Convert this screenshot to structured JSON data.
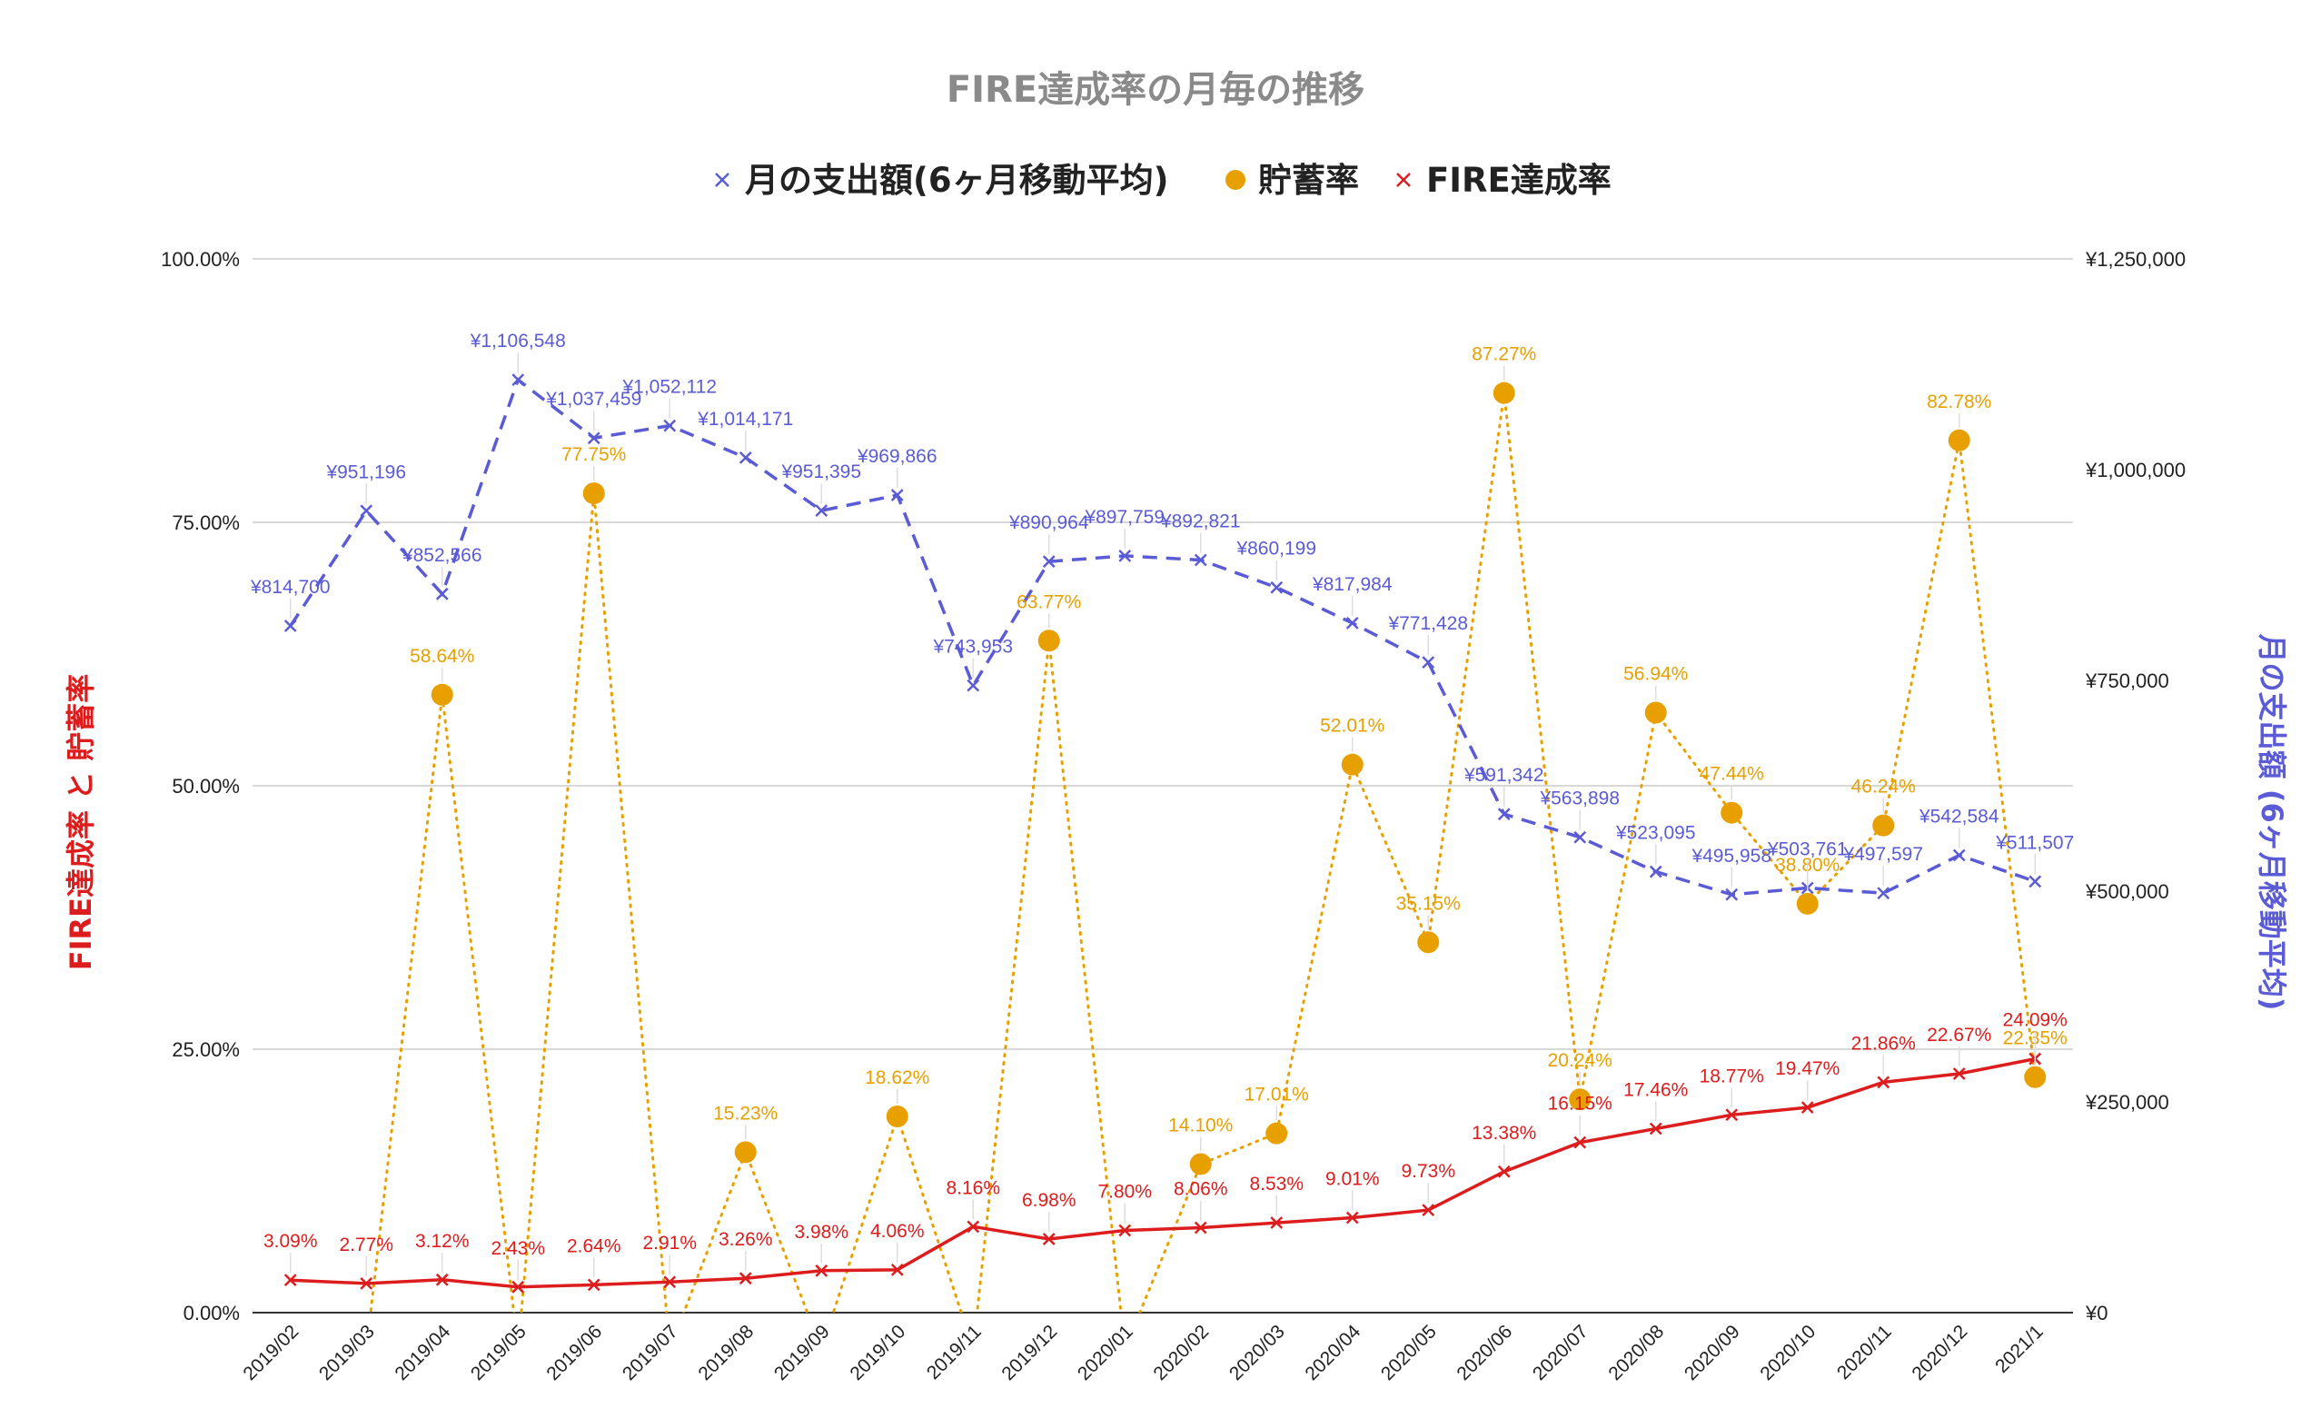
{
  "chart_data": {
    "type": "line",
    "title": "FIRE達成率の月毎の推移",
    "legend": [
      {
        "name": "月の支出額(6ヶ月移動平均)",
        "color": "#5b5bd6",
        "marker": "x"
      },
      {
        "name": "貯蓄率",
        "color": "#e8a000",
        "marker": "circle"
      },
      {
        "name": "FIRE達成率",
        "color": "#dd1d1d",
        "marker": "x"
      }
    ],
    "legend_position": "top",
    "grid": true,
    "ylabel_left": "FIRE達成率 と 貯蓄率",
    "ylabel_right": "月の支出額 (6ヶ月移動平均)",
    "yticks_left": [
      "0.00%",
      "25.00%",
      "50.00%",
      "75.00%",
      "100.00%"
    ],
    "yticks_right": [
      "¥0",
      "¥250,000",
      "¥500,000",
      "¥750,000",
      "¥1,000,000",
      "¥1,250,000"
    ],
    "ylim_left": [
      0,
      100
    ],
    "ylim_right": [
      0,
      1250000
    ],
    "categories": [
      "2019/02",
      "2019/03",
      "2019/04",
      "2019/05",
      "2019/06",
      "2019/07",
      "2019/08",
      "2019/09",
      "2019/10",
      "2019/11",
      "2019/12",
      "2020/01",
      "2020/02",
      "2020/03",
      "2020/04",
      "2020/05",
      "2020/06",
      "2020/07",
      "2020/08",
      "2020/09",
      "2020/10",
      "2020/11",
      "2020/12",
      "2021/1"
    ],
    "series": [
      {
        "name": "月の支出額(6ヶ月移動平均)",
        "axis": "right",
        "color": "#5b5bd6",
        "style": "dashed",
        "marker": "x",
        "values": [
          814700,
          951196,
          852566,
          1106548,
          1037459,
          1052112,
          1014171,
          951395,
          969866,
          743953,
          890964,
          897759,
          892821,
          860199,
          817984,
          771428,
          591342,
          563898,
          523095,
          495958,
          503761,
          497597,
          542584,
          511507
        ],
        "labels": [
          "¥814,700",
          "¥951,196",
          "¥852,566",
          "¥1,106,548",
          "¥1,037,459",
          "¥1,052,112",
          "¥1,014,171",
          "¥951,395",
          "¥969,866",
          "¥743,953",
          "¥890,964",
          "¥897,759",
          "¥892,821",
          "¥860,199",
          "¥817,984",
          "¥771,428",
          "¥591,342",
          "¥563,898",
          "¥523,095",
          "¥495,958",
          "¥503,761",
          "¥497,597",
          "¥542,584",
          "¥511,507"
        ]
      },
      {
        "name": "貯蓄率",
        "axis": "left",
        "color": "#e8a000",
        "style": "dotted",
        "marker": "circle",
        "values": [
          null,
          null,
          58.64,
          null,
          77.75,
          null,
          15.23,
          null,
          18.62,
          null,
          63.77,
          null,
          14.1,
          17.01,
          52.01,
          35.15,
          87.27,
          20.24,
          56.94,
          47.44,
          38.8,
          46.24,
          82.78,
          22.35
        ],
        "labels": [
          null,
          null,
          "58.64%",
          null,
          "77.75%",
          null,
          "15.23%",
          null,
          "18.62%",
          null,
          "63.77%",
          null,
          "14.10%",
          "17.01%",
          "52.01%",
          "35.15%",
          "87.27%",
          "20.24%",
          "56.94%",
          "47.44%",
          "38.80%",
          "46.24%",
          "82.78%",
          "22.35%"
        ]
      },
      {
        "name": "FIRE達成率",
        "axis": "left",
        "color": "#dd1d1d",
        "style": "solid",
        "marker": "x",
        "values": [
          3.09,
          2.77,
          3.12,
          2.43,
          2.64,
          2.91,
          3.26,
          3.98,
          4.06,
          8.16,
          6.98,
          7.8,
          8.06,
          8.53,
          9.01,
          9.73,
          13.38,
          16.15,
          17.46,
          18.77,
          19.47,
          21.86,
          22.67,
          24.09
        ],
        "labels": [
          "3.09%",
          "2.77%",
          "3.12%",
          "2.43%",
          "2.64%",
          "2.91%",
          "3.26%",
          "3.98%",
          "4.06%",
          "8.16%",
          "6.98%",
          "7.80%",
          "8.06%",
          "8.53%",
          "9.01%",
          "9.73%",
          "13.38%",
          "16.15%",
          "17.46%",
          "18.77%",
          "19.47%",
          "21.86%",
          "22.67%",
          "24.09%"
        ]
      }
    ]
  }
}
